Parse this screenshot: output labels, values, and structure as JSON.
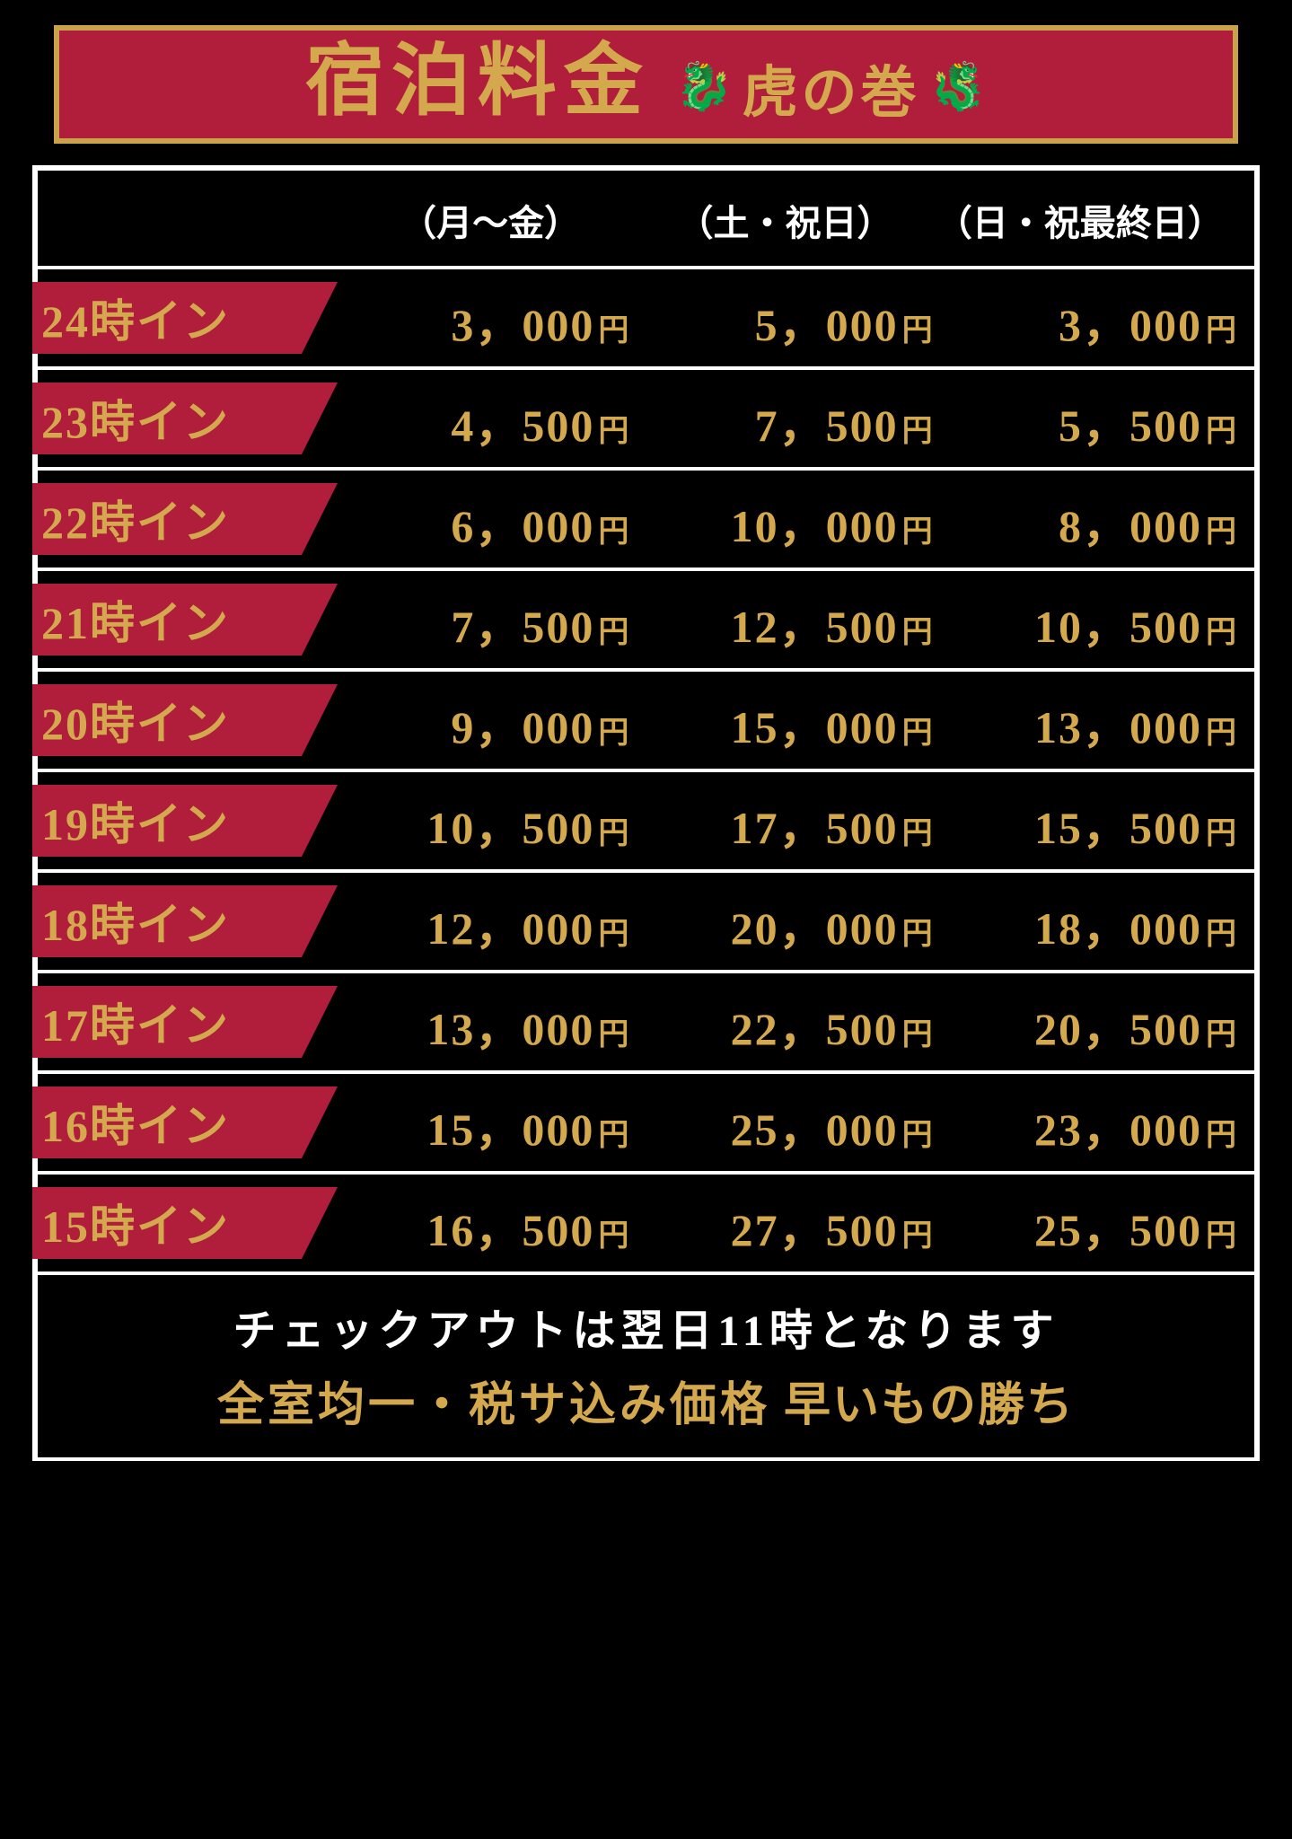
{
  "colors": {
    "bg": "#000000",
    "title_bg": "#b01e3c",
    "title_border": "#c9a24a",
    "title_text": "#d4a94e",
    "panel_border": "#ffffff",
    "row_tag_bg": "#b01e3c",
    "row_tag_text": "#d4a94e",
    "price_text": "#d4a94e",
    "header_text": "#ffffff",
    "footer_text_white": "#ffffff",
    "footer_text_gold": "#d4a94e"
  },
  "title": {
    "main": "宿泊料金",
    "sub": "虎の巻",
    "ornament": "🐉"
  },
  "columns": [
    "（月～金）",
    "（土・祝日）",
    "（日・祝最終日）"
  ],
  "yen_suffix": "円",
  "rows": [
    {
      "label": "24時イン",
      "prices": [
        "3，000",
        "5，000",
        "3，000"
      ]
    },
    {
      "label": "23時イン",
      "prices": [
        "4，500",
        "7，500",
        "5，500"
      ]
    },
    {
      "label": "22時イン",
      "prices": [
        "6，000",
        "10，000",
        "8，000"
      ]
    },
    {
      "label": "21時イン",
      "prices": [
        "7，500",
        "12，500",
        "10，500"
      ]
    },
    {
      "label": "20時イン",
      "prices": [
        "9，000",
        "15，000",
        "13，000"
      ]
    },
    {
      "label": "19時イン",
      "prices": [
        "10，500",
        "17，500",
        "15，500"
      ]
    },
    {
      "label": "18時イン",
      "prices": [
        "12，000",
        "20，000",
        "18，000"
      ]
    },
    {
      "label": "17時イン",
      "prices": [
        "13，000",
        "22，500",
        "20，500"
      ]
    },
    {
      "label": "16時イン",
      "prices": [
        "15，000",
        "25，000",
        "23，000"
      ]
    },
    {
      "label": "15時イン",
      "prices": [
        "16，500",
        "27，500",
        "25，500"
      ]
    }
  ],
  "footer": {
    "line1": "チェックアウトは翌日11時となります",
    "line2_strong": "全室均一・税サ込み価格",
    "line2_tail": " 早いもの勝ち"
  }
}
